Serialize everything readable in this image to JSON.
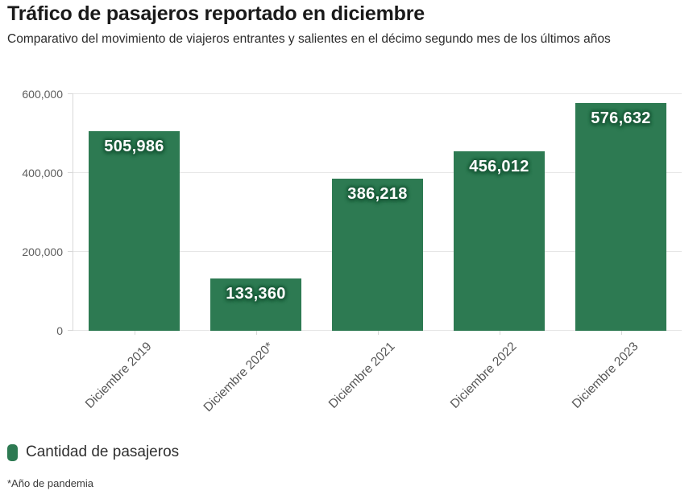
{
  "header": {
    "title": "Tráfico de pasajeros reportado en diciembre",
    "subtitle": "Comparativo del movimiento de viajeros entrantes y salientes en el décimo segundo mes de los últimos años"
  },
  "chart_data": {
    "type": "bar",
    "title": "Tráfico de pasajeros reportado en diciembre",
    "subtitle": "Comparativo del movimiento de viajeros entrantes y salientes en el décimo segundo mes de los últimos años",
    "categories": [
      "Diciembre 2019",
      "Diciembre 2020*",
      "Diciembre 2021",
      "Diciembre 2022",
      "Diciembre 2023"
    ],
    "values": [
      505986,
      133360,
      386218,
      456012,
      576632
    ],
    "value_labels": [
      "505,986",
      "133,360",
      "386,218",
      "456,012",
      "576,632"
    ],
    "series_name": "Cantidad de pasajeros",
    "xlabel": "",
    "ylabel": "",
    "ylim": [
      0,
      600000
    ],
    "yticks": [
      0,
      200000,
      400000,
      600000
    ],
    "ytick_labels": [
      "0",
      "200,000",
      "400,000",
      "600,000"
    ],
    "grid": "horizontal",
    "legend_position": "bottom-left",
    "bar_color": "#2d7a52",
    "value_label_halo_color": "#1e5e3d",
    "value_label_text_color": "#ffffff"
  },
  "legend": {
    "label": "Cantidad de pasajeros",
    "swatch_color": "#2d7a52"
  },
  "footnote": "*Año de pandemia"
}
